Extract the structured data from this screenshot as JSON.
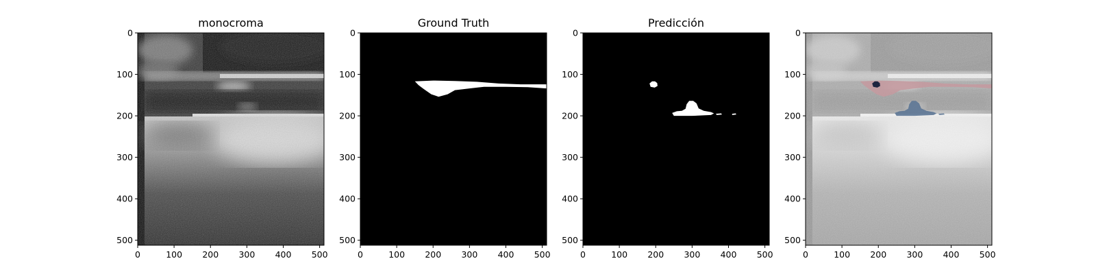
{
  "figure": {
    "panels": [
      {
        "id": "monocroma",
        "title": "monocroma",
        "kind": "ultrasound",
        "xticks": [
          "0",
          "100",
          "200",
          "300",
          "400",
          "500"
        ],
        "yticks": [
          "0",
          "100",
          "200",
          "300",
          "400",
          "500"
        ]
      },
      {
        "id": "ground-truth",
        "title": "Ground Truth",
        "kind": "mask",
        "xticks": [
          "0",
          "100",
          "200",
          "300",
          "400",
          "500"
        ],
        "yticks": [
          "0",
          "100",
          "200",
          "300",
          "400",
          "500"
        ]
      },
      {
        "id": "prediccion",
        "title": "Predicción",
        "kind": "mask",
        "xticks": [
          "0",
          "100",
          "200",
          "300",
          "400",
          "500"
        ],
        "yticks": [
          "0",
          "100",
          "200",
          "300",
          "400",
          "500"
        ]
      },
      {
        "id": "overlay",
        "title": "",
        "kind": "overlay",
        "xticks": [
          "0",
          "100",
          "200",
          "300",
          "400",
          "500"
        ],
        "yticks": [
          "0",
          "100",
          "200",
          "300",
          "400",
          "500"
        ]
      }
    ],
    "image_size": [
      512,
      512
    ],
    "colors": {
      "mask_background": "#000000",
      "mask_foreground": "#ffffff",
      "ground_truth_overlay": "#c49aa0",
      "prediction_overlay": "#5c7595",
      "overlap_overlay": "#1f2540"
    }
  }
}
